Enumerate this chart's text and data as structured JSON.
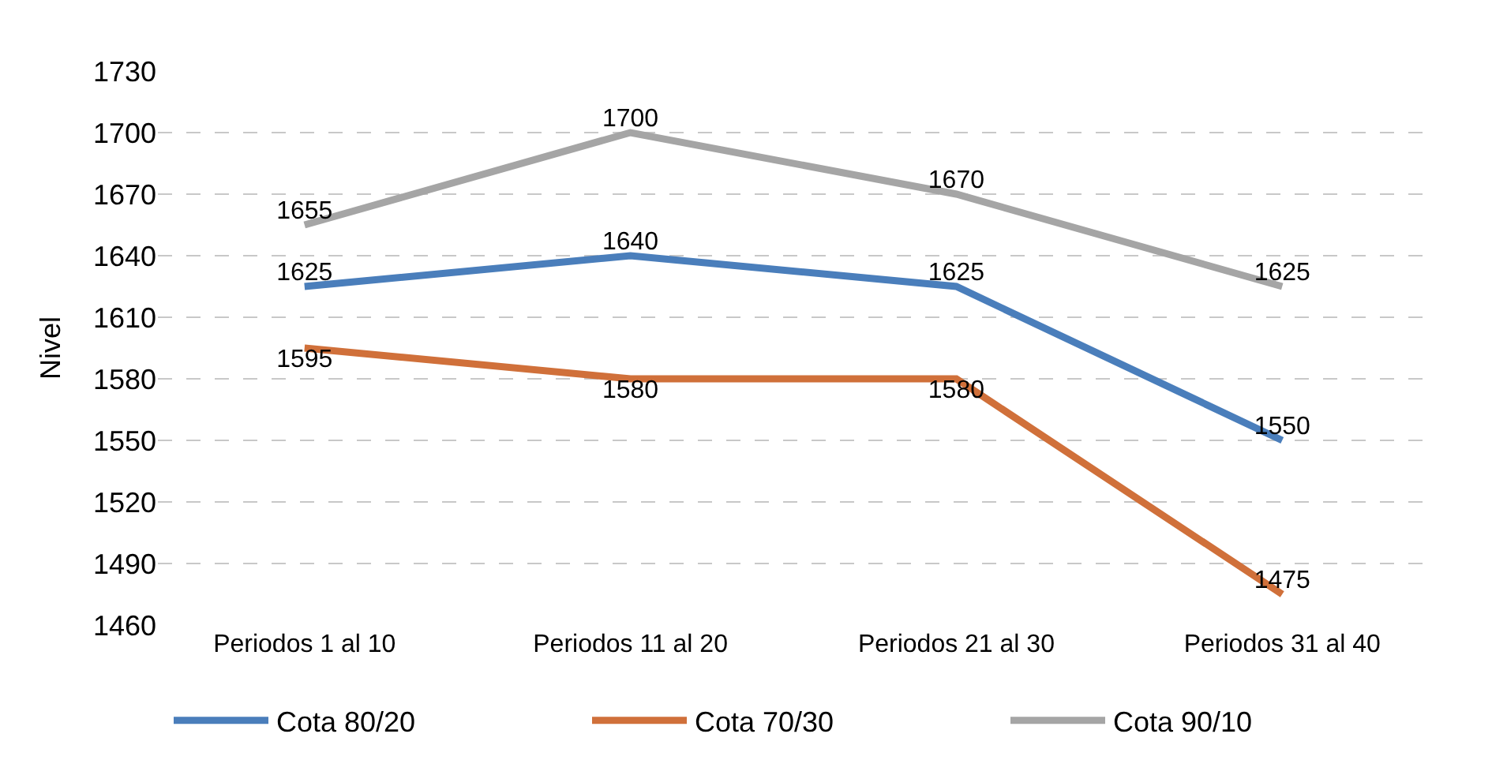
{
  "chart_data": {
    "type": "line",
    "ylabel": "Nivel",
    "categories": [
      "Periodos 1 al 10",
      "Periodos 11 al 20",
      "Periodos 21 al 30",
      "Periodos 31 al 40"
    ],
    "series": [
      {
        "name": "Cota 80/20",
        "color": "#4a7ebb",
        "values": [
          1625,
          1640,
          1625,
          1550
        ]
      },
      {
        "name": "Cota 70/30",
        "color": "#d0703a",
        "values": [
          1595,
          1580,
          1580,
          1475
        ]
      },
      {
        "name": "Cota 90/10",
        "color": "#a5a5a5",
        "values": [
          1655,
          1700,
          1670,
          1625
        ]
      }
    ],
    "ylim": [
      1460,
      1730
    ],
    "yticks": [
      1460,
      1490,
      1520,
      1550,
      1580,
      1610,
      1640,
      1670,
      1700,
      1730
    ],
    "grid": "y",
    "legend": "bottom",
    "data_labels": true,
    "marker": "none",
    "line_style": "solid"
  }
}
